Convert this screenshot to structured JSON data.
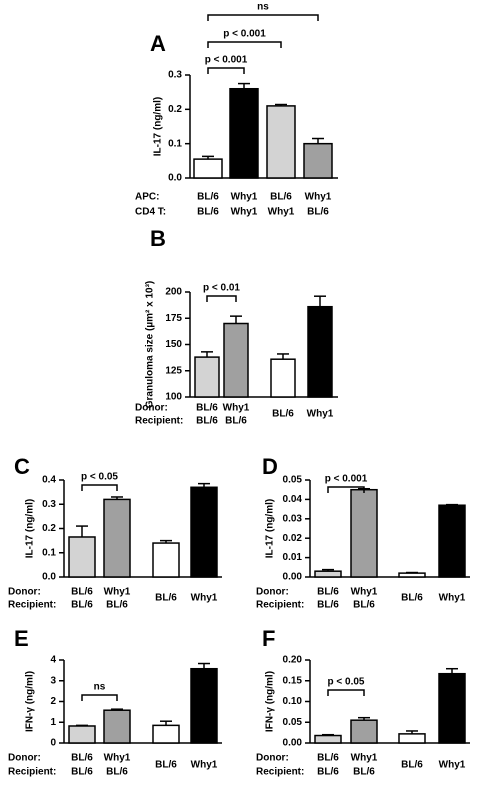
{
  "chart_data": [
    {
      "type": "bar",
      "panel": "A",
      "ylabel": "IL-17 (ng/ml)",
      "ylim": [
        0,
        0.3
      ],
      "yticks": [
        {
          "value": 0,
          "label": "0.0"
        },
        0.1,
        0.2,
        0.3
      ],
      "values": [
        0.055,
        0.26,
        0.21,
        0.1
      ],
      "errors": [
        0.008,
        0.015,
        0.004,
        0.015
      ],
      "colors": [
        "#ffffff",
        "#000000",
        "#d3d3d3",
        "#a0a0a0"
      ],
      "label_rows": [
        {
          "name": "APC:",
          "labels": [
            "BL/6",
            "Why1",
            "BL/6",
            "Why1"
          ]
        },
        {
          "name": "CD4 T:",
          "labels": [
            "BL/6",
            "Why1",
            "Why1",
            "BL/6"
          ]
        }
      ],
      "annotations": [
        {
          "text": "p < 0.001",
          "from": 0,
          "to": 1
        },
        {
          "text": "p < 0.001",
          "from": 0,
          "to": 2
        },
        {
          "text": "ns",
          "from": 0,
          "to": 3
        }
      ]
    },
    {
      "type": "bar",
      "panel": "B",
      "ylabel": "Granuloma size (µm² x 10³)",
      "ylim": [
        100,
        200
      ],
      "yticks": [
        100,
        125,
        150,
        175,
        200
      ],
      "categories": [
        null,
        null,
        "BL/6",
        "Why1"
      ],
      "values": [
        138,
        170,
        136,
        186
      ],
      "errors": [
        5,
        7,
        5,
        10
      ],
      "colors": [
        "#d3d3d3",
        "#a0a0a0",
        "#ffffff",
        "#000000"
      ],
      "label_rows": [
        {
          "name": "Donor:",
          "labels": [
            "BL/6",
            "Why1",
            null,
            null
          ]
        },
        {
          "name": "Recipient:",
          "labels": [
            "BL/6",
            "BL/6",
            null,
            null
          ]
        }
      ],
      "annotations": [
        {
          "text": "p < 0.01",
          "from": 0,
          "to": 1
        }
      ]
    },
    {
      "type": "bar",
      "panel": "C",
      "ylabel": "IL-17 (ng/ml)",
      "ylim": [
        0,
        0.4
      ],
      "yticks": [
        {
          "value": 0,
          "label": "0.0"
        },
        0.1,
        0.2,
        0.3,
        0.4
      ],
      "categories": [
        null,
        null,
        "BL/6",
        "Why1"
      ],
      "values": [
        0.165,
        0.32,
        0.14,
        0.37
      ],
      "errors": [
        0.045,
        0.01,
        0.01,
        0.015
      ],
      "colors": [
        "#d3d3d3",
        "#a0a0a0",
        "#ffffff",
        "#000000"
      ],
      "label_rows": [
        {
          "name": "Donor:",
          "labels": [
            "BL/6",
            "Why1",
            null,
            null
          ]
        },
        {
          "name": "Recipient:",
          "labels": [
            "BL/6",
            "BL/6",
            null,
            null
          ]
        }
      ],
      "annotations": [
        {
          "text": "p < 0.05",
          "from": 0,
          "to": 1
        }
      ]
    },
    {
      "type": "bar",
      "panel": "D",
      "ylabel": "IL-17 (ng/ml)",
      "ylim": [
        0,
        0.05
      ],
      "yticks": [
        {
          "value": 0,
          "label": "0.00"
        },
        0.01,
        0.02,
        0.03,
        0.04,
        0.05
      ],
      "categories": [
        null,
        null,
        "BL/6",
        "Why1"
      ],
      "values": [
        0.003,
        0.045,
        0.002,
        0.037
      ],
      "errors": [
        0.0008,
        0.0005,
        0.0003,
        0.0003
      ],
      "colors": [
        "#d3d3d3",
        "#a0a0a0",
        "#ffffff",
        "#000000"
      ],
      "label_rows": [
        {
          "name": "Donor:",
          "labels": [
            "BL/6",
            "Why1",
            null,
            null
          ]
        },
        {
          "name": "Recipient:",
          "labels": [
            "BL/6",
            "BL/6",
            null,
            null
          ]
        }
      ],
      "annotations": [
        {
          "text": "p < 0.001",
          "from": 0,
          "to": 1
        }
      ]
    },
    {
      "type": "bar",
      "panel": "E",
      "ylabel": "IFN-γ (ng/ml)",
      "ylim": [
        0,
        4
      ],
      "yticks": [
        0,
        1,
        2,
        3,
        4
      ],
      "categories": [
        null,
        null,
        "BL/6",
        "Why1"
      ],
      "values": [
        0.82,
        1.58,
        0.85,
        3.58
      ],
      "errors": [
        0.03,
        0.05,
        0.2,
        0.25
      ],
      "colors": [
        "#d3d3d3",
        "#a0a0a0",
        "#ffffff",
        "#000000"
      ],
      "label_rows": [
        {
          "name": "Donor:",
          "labels": [
            "BL/6",
            "Why1",
            null,
            null
          ]
        },
        {
          "name": "Recipient:",
          "labels": [
            "BL/6",
            "BL/6",
            null,
            null
          ]
        }
      ],
      "annotations": [
        {
          "text": "ns",
          "from": 0,
          "to": 1
        }
      ]
    },
    {
      "type": "bar",
      "panel": "F",
      "ylabel": "IFN-γ (ng/ml)",
      "ylim": [
        0,
        0.2
      ],
      "yticks": [
        {
          "value": 0,
          "label": "0.00"
        },
        0.05,
        {
          "value": 0.1,
          "label": "0.10"
        },
        {
          "value": 0.15,
          "label": "0.15"
        },
        {
          "value": 0.2,
          "label": "0.20"
        }
      ],
      "categories": [
        null,
        null,
        "BL/6",
        "Why1"
      ],
      "values": [
        0.018,
        0.055,
        0.022,
        0.167
      ],
      "errors": [
        0.002,
        0.006,
        0.007,
        0.012
      ],
      "colors": [
        "#d3d3d3",
        "#a0a0a0",
        "#ffffff",
        "#000000"
      ],
      "label_rows": [
        {
          "name": "Donor:",
          "labels": [
            "BL/6",
            "Why1",
            null,
            null
          ]
        },
        {
          "name": "Recipient:",
          "labels": [
            "BL/6",
            "BL/6",
            null,
            null
          ]
        }
      ],
      "annotations": [
        {
          "text": "p < 0.05",
          "from": 0,
          "to": 1
        }
      ]
    }
  ]
}
